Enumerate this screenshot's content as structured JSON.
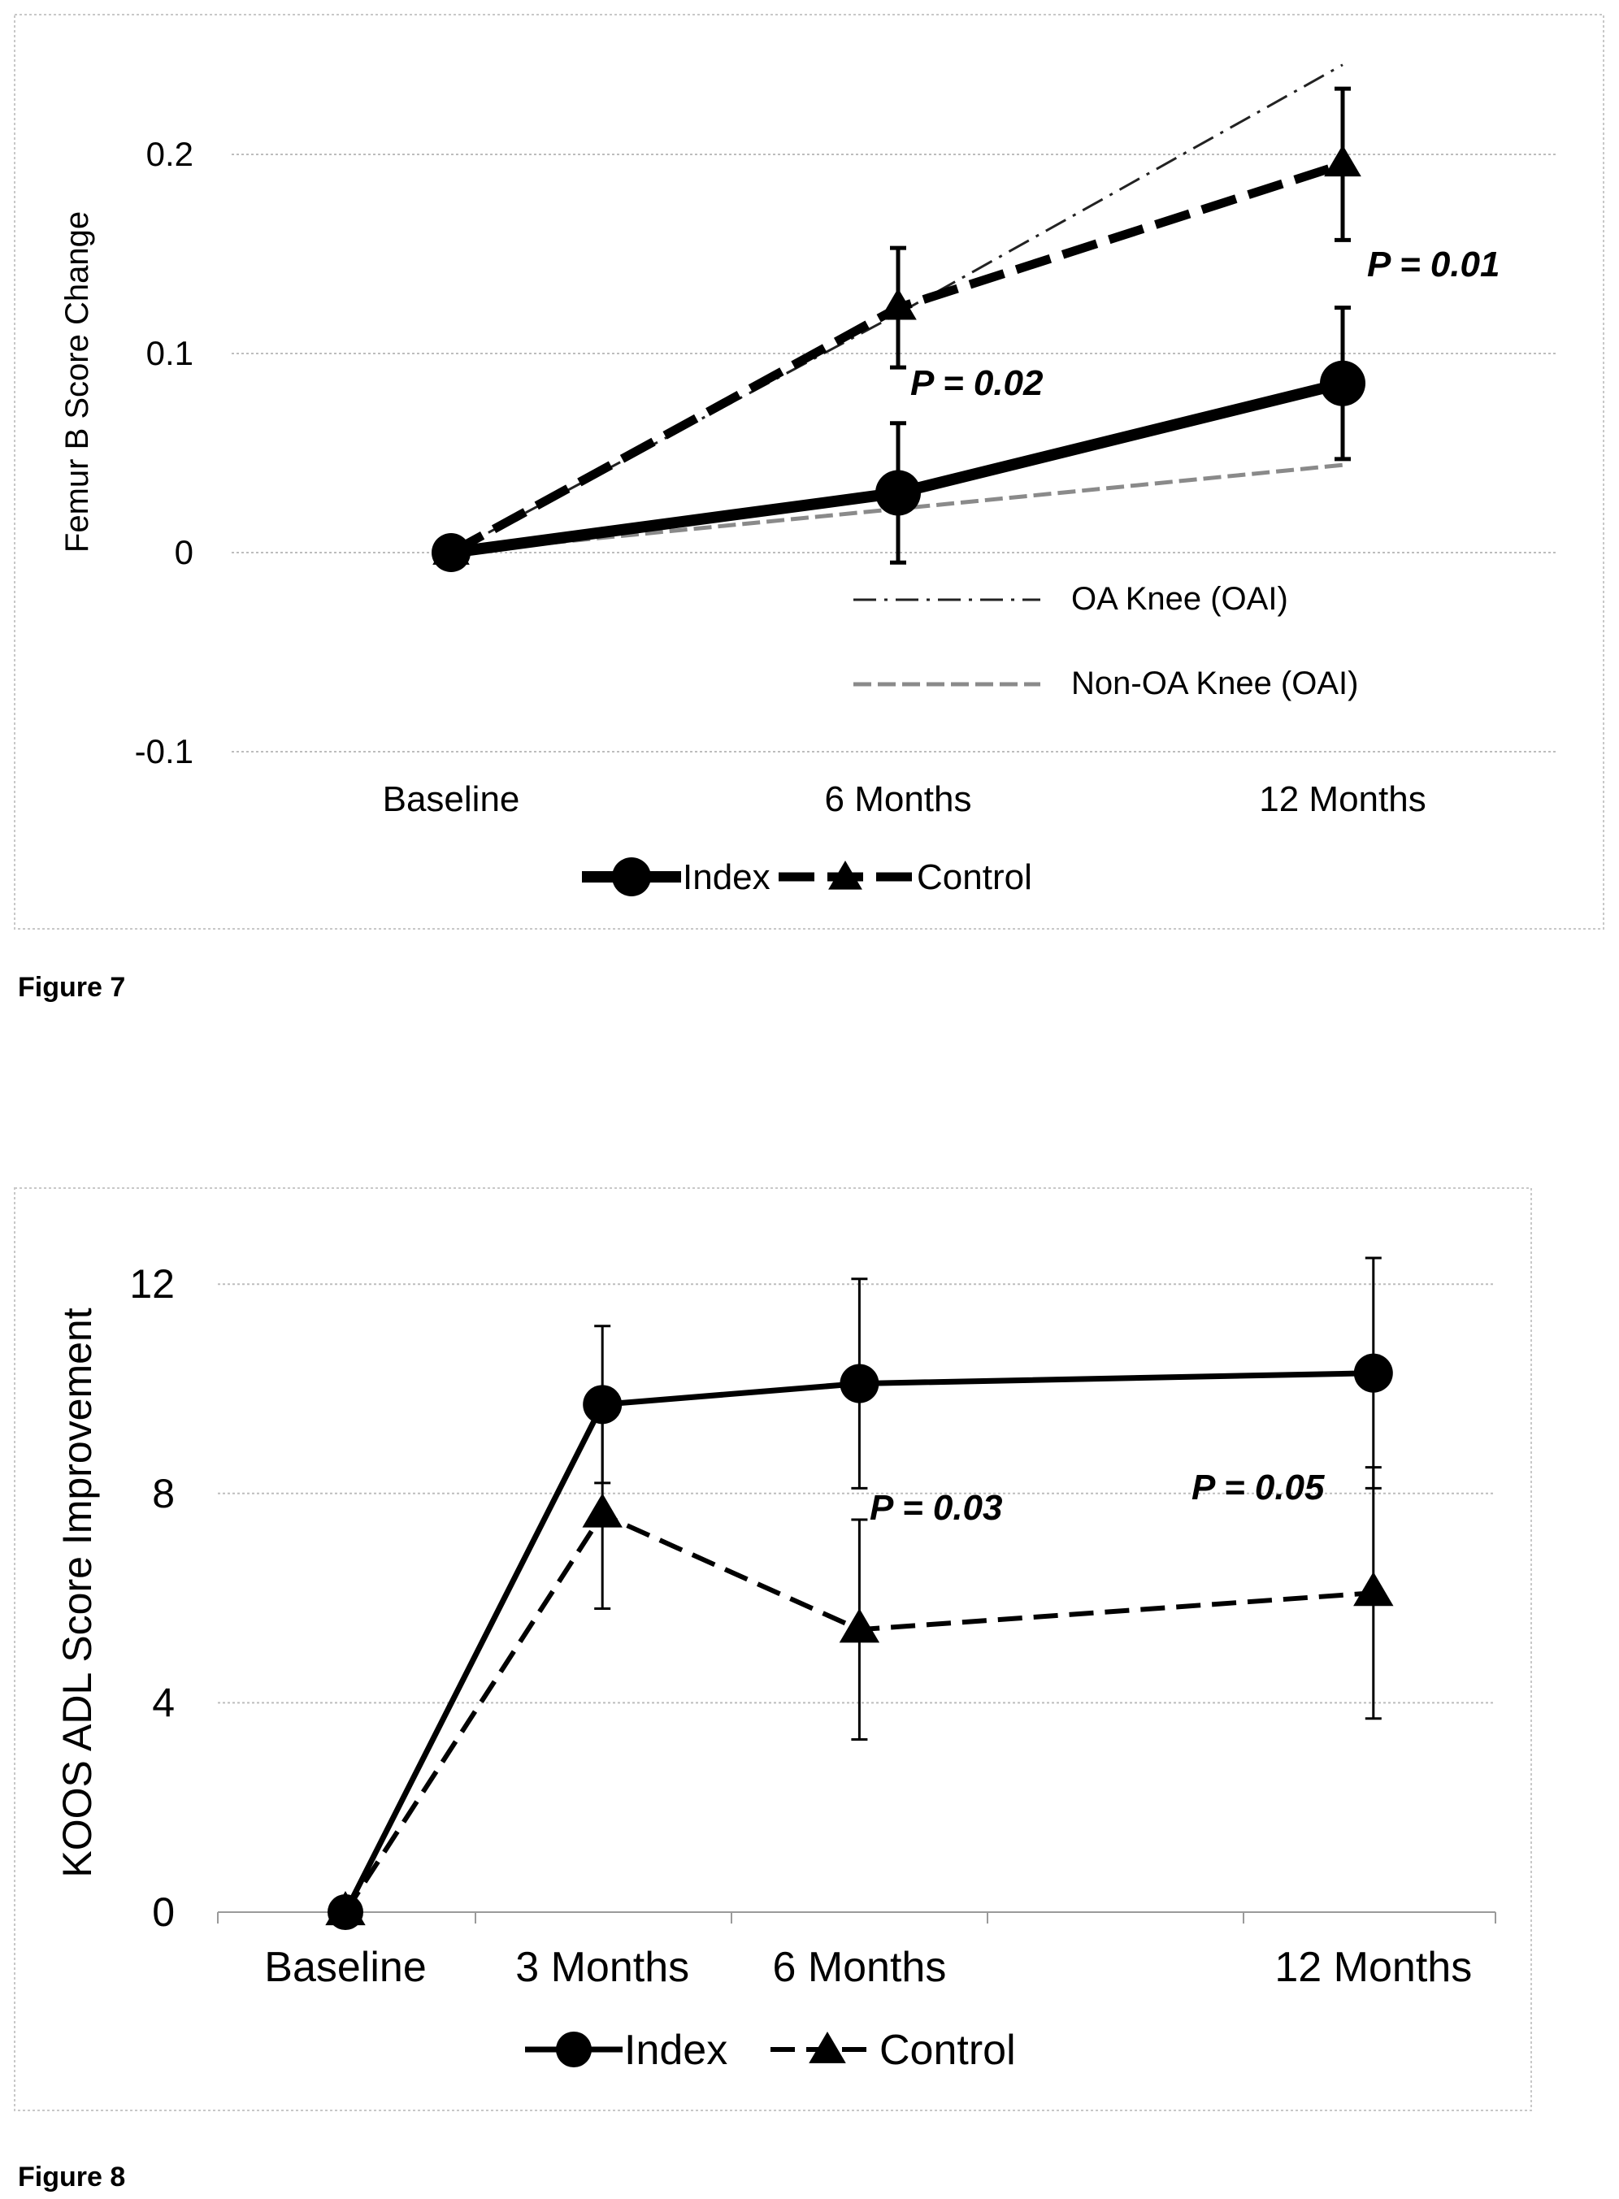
{
  "figures": [
    {
      "caption": "Figure 7"
    },
    {
      "caption": "Figure 8"
    }
  ],
  "chart_data": [
    {
      "type": "line",
      "title": "",
      "xlabel": "",
      "ylabel": "Femur B Score Change",
      "categories": [
        "Baseline",
        "6 Months",
        "12 Months"
      ],
      "ylim": [
        -0.1,
        0.25
      ],
      "yticks": [
        -0.1,
        0,
        0.1,
        0.2
      ],
      "ytick_labels": [
        "-0.1",
        "0",
        "0.1",
        "0.2"
      ],
      "grid": true,
      "legend_position": "bottom",
      "series": [
        {
          "name": "Index",
          "marker": "circle",
          "style": "solid",
          "values": [
            0,
            0.03,
            0.085
          ],
          "error": [
            0,
            0.035,
            0.038
          ]
        },
        {
          "name": "Control",
          "marker": "triangle",
          "style": "dashed",
          "values": [
            0,
            0.123,
            0.195
          ],
          "error": [
            0,
            0.03,
            0.038
          ]
        }
      ],
      "reference_lines": [
        {
          "name": "OA Knee (OAI)",
          "style": "dash-dot",
          "values": [
            0,
            0.12,
            0.245
          ]
        },
        {
          "name": "Non-OA Knee (OAI)",
          "style": "dashed-gray",
          "values": [
            0,
            0.022,
            0.044
          ]
        }
      ],
      "annotations": [
        "P = 0.02",
        "P = 0.01"
      ]
    },
    {
      "type": "line",
      "title": "",
      "xlabel": "",
      "ylabel": "KOOS ADL Score Improvement",
      "categories": [
        "Baseline",
        "3 Months",
        "6 Months",
        "12 Months"
      ],
      "x_months": [
        0,
        3,
        6,
        12
      ],
      "ylim": [
        0,
        14
      ],
      "yticks": [
        0,
        4,
        8,
        12
      ],
      "ytick_labels": [
        "0",
        "4",
        "8",
        "12"
      ],
      "grid": true,
      "legend_position": "bottom",
      "series": [
        {
          "name": "Index",
          "marker": "circle",
          "style": "solid",
          "values": [
            0,
            9.7,
            10.1,
            10.3
          ],
          "error": [
            0,
            1.5,
            2.0,
            2.2
          ]
        },
        {
          "name": "Control",
          "marker": "triangle",
          "style": "dashed",
          "values": [
            0,
            7.6,
            5.4,
            6.1
          ],
          "error": [
            0,
            1.8,
            2.1,
            2.4
          ]
        }
      ],
      "annotations": [
        "P = 0.03",
        "P = 0.05"
      ]
    }
  ]
}
